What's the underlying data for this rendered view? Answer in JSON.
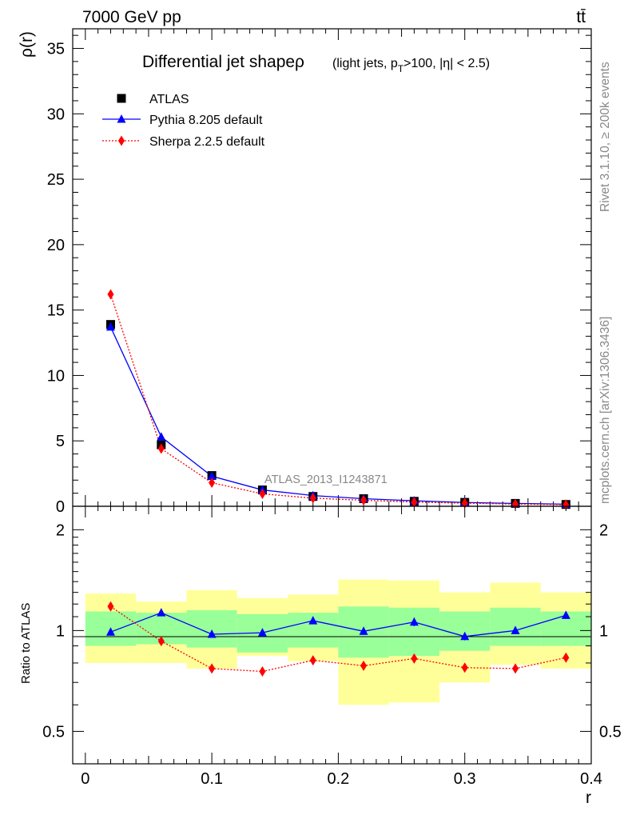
{
  "header": {
    "energy_label": "7000 GeV pp",
    "process_label": "tt̄"
  },
  "side_notes": {
    "rivet": "Rivet 3.1.10, ≥ 200k events",
    "mcplots": "mcplots.cern.ch [arXiv:1306.3436]"
  },
  "chart_data": [
    {
      "type": "scatter",
      "panel": "main",
      "title": "Differential jet shapeρ",
      "subtitle": "(light jets, pT>100, |η| < 2.5)",
      "watermark": "ATLAS_2013_I1243871",
      "xlabel": "r",
      "ylabel": "ρ(r)",
      "xlim": [
        -0.01,
        0.4
      ],
      "ylim": [
        0,
        36.5
      ],
      "x_ticks": [
        0,
        0.1,
        0.2,
        0.3,
        0.4
      ],
      "x_tick_labels": [
        "0",
        "0.1",
        "0.2",
        "0.3",
        "0.4"
      ],
      "y_ticks": [
        0,
        5,
        10,
        15,
        20,
        25,
        30,
        35
      ],
      "y_tick_labels": [
        "0",
        "5",
        "10",
        "15",
        "20",
        "25",
        "30",
        "35"
      ],
      "legend_position": "top-left",
      "x": [
        0.02,
        0.06,
        0.1,
        0.14,
        0.18,
        0.22,
        0.26,
        0.3,
        0.34,
        0.38
      ],
      "series": [
        {
          "name": "ATLAS",
          "marker": "square",
          "color": "#000000",
          "values": [
            13.9,
            4.7,
            2.35,
            1.25,
            0.75,
            0.58,
            0.38,
            0.3,
            0.22,
            0.14
          ]
        },
        {
          "name": "Pythia 8.205 default",
          "marker": "triangle",
          "color": "#0000ff",
          "line": "solid",
          "values": [
            13.7,
            5.3,
            2.3,
            1.25,
            0.82,
            0.58,
            0.42,
            0.29,
            0.22,
            0.16
          ]
        },
        {
          "name": "Sherpa 2.2.5 default",
          "marker": "diamond",
          "color": "#ff0000",
          "line": "dotted",
          "values": [
            16.2,
            4.4,
            1.8,
            0.95,
            0.62,
            0.46,
            0.32,
            0.24,
            0.17,
            0.12
          ]
        }
      ]
    },
    {
      "type": "scatter",
      "panel": "ratio",
      "xlabel": "r",
      "ylabel": "Ratio to ATLAS",
      "xlim": [
        -0.01,
        0.4
      ],
      "ylim": [
        0.4,
        2.35
      ],
      "y_scale": "log",
      "x_ticks": [
        0,
        0.1,
        0.2,
        0.3,
        0.4
      ],
      "x_tick_labels": [
        "0",
        "0.1",
        "0.2",
        "0.3",
        "0.4"
      ],
      "y_ticks": [
        0.5,
        1,
        2
      ],
      "y_tick_labels": [
        "0.5",
        "1",
        "2"
      ],
      "bin_edges": [
        0,
        0.04,
        0.08,
        0.12,
        0.16,
        0.2,
        0.24,
        0.28,
        0.32,
        0.36,
        0.4
      ],
      "band_colors": {
        "inner": "#99ff99",
        "outer": "#ffff99"
      },
      "band_inner": [
        [
          0.9,
          1.14
        ],
        [
          0.91,
          1.13
        ],
        [
          0.89,
          1.15
        ],
        [
          0.86,
          1.12
        ],
        [
          0.89,
          1.13
        ],
        [
          0.83,
          1.18
        ],
        [
          0.84,
          1.17
        ],
        [
          0.87,
          1.14
        ],
        [
          0.9,
          1.17
        ],
        [
          0.9,
          1.14
        ]
      ],
      "band_outer": [
        [
          0.8,
          1.29
        ],
        [
          0.8,
          1.22
        ],
        [
          0.77,
          1.32
        ],
        [
          0.84,
          1.25
        ],
        [
          0.81,
          1.28
        ],
        [
          0.6,
          1.42
        ],
        [
          0.61,
          1.41
        ],
        [
          0.7,
          1.3
        ],
        [
          0.79,
          1.39
        ],
        [
          0.77,
          1.3
        ]
      ],
      "x": [
        0.02,
        0.06,
        0.1,
        0.14,
        0.18,
        0.22,
        0.26,
        0.3,
        0.34,
        0.38
      ],
      "series": [
        {
          "name": "Pythia 8.205 default",
          "marker": "triangle",
          "color": "#0000ff",
          "line": "solid",
          "values": [
            0.99,
            1.13,
            0.975,
            0.985,
            1.07,
            0.995,
            1.06,
            0.96,
            1.0,
            1.11
          ],
          "errors": [
            0.006,
            0.012,
            0.014,
            0.018,
            0.025,
            0.025,
            0.03,
            0.025,
            0.025,
            0.025
          ]
        },
        {
          "name": "Sherpa 2.2.5 default",
          "marker": "diamond",
          "color": "#ff0000",
          "line": "dotted",
          "values": [
            1.18,
            0.93,
            0.77,
            0.755,
            0.815,
            0.785,
            0.825,
            0.775,
            0.77,
            0.83
          ],
          "errors": [
            0.008,
            0.01,
            0.012,
            0.015,
            0.018,
            0.02,
            0.022,
            0.02,
            0.02,
            0.02
          ]
        }
      ]
    }
  ]
}
